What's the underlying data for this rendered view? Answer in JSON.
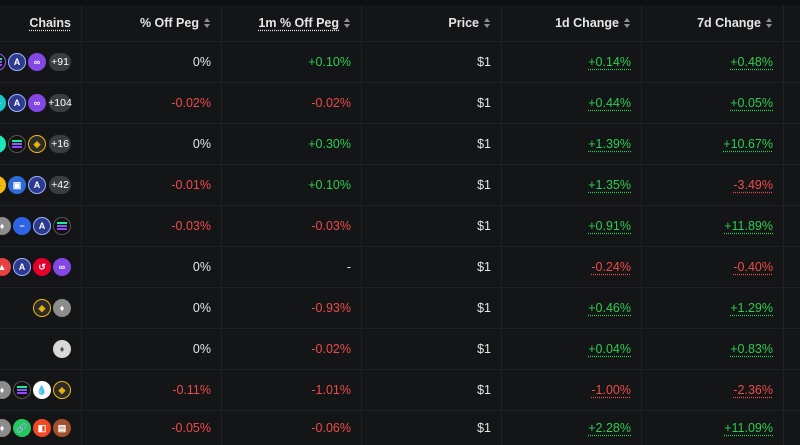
{
  "header": {
    "chains": "Chains",
    "off_peg": "% Off Peg",
    "off_peg_1m": "1m % Off Peg",
    "price": "Price",
    "change_1d": "1d Change",
    "change_7d": "7d Change"
  },
  "rows": [
    {
      "more": "+91",
      "off_peg": "0%",
      "off_peg_1m": "+0.10%",
      "price": "$1",
      "change_1d": "+0.14%",
      "change_7d": "+0.48%"
    },
    {
      "more": "+104",
      "off_peg": "-0.02%",
      "off_peg_1m": "-0.02%",
      "price": "$1",
      "change_1d": "+0.44%",
      "change_7d": "+0.05%"
    },
    {
      "more": "+16",
      "off_peg": "0%",
      "off_peg_1m": "+0.30%",
      "price": "$1",
      "change_1d": "+1.39%",
      "change_7d": "+10.67%"
    },
    {
      "more": "+42",
      "off_peg": "-0.01%",
      "off_peg_1m": "+0.10%",
      "price": "$1",
      "change_1d": "+1.35%",
      "change_7d": "-3.49%"
    },
    {
      "more": "",
      "off_peg": "-0.03%",
      "off_peg_1m": "-0.03%",
      "price": "$1",
      "change_1d": "+0.91%",
      "change_7d": "+11.89%"
    },
    {
      "more": "",
      "off_peg": "0%",
      "off_peg_1m": "-",
      "price": "$1",
      "change_1d": "-0.24%",
      "change_7d": "-0.40%"
    },
    {
      "more": "",
      "off_peg": "0%",
      "off_peg_1m": "-0.93%",
      "price": "$1",
      "change_1d": "+0.46%",
      "change_7d": "+1.29%"
    },
    {
      "more": "",
      "off_peg": "0%",
      "off_peg_1m": "-0.02%",
      "price": "$1",
      "change_1d": "+0.04%",
      "change_7d": "+0.83%"
    },
    {
      "more": "",
      "off_peg": "-0.11%",
      "off_peg_1m": "-1.01%",
      "price": "$1",
      "change_1d": "-1.00%",
      "change_7d": "-2.36%"
    },
    {
      "more": "",
      "off_peg": "-0.05%",
      "off_peg_1m": "-0.06%",
      "price": "$1",
      "change_1d": "+2.28%",
      "change_7d": "+11.09%"
    }
  ],
  "colors": {
    "positive": "#2ecc4f",
    "negative": "#ef4a4a",
    "background": "#141517"
  }
}
